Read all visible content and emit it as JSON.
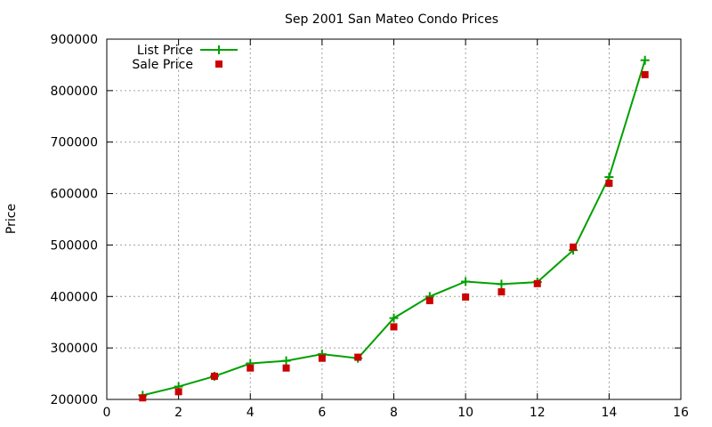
{
  "chart_data": {
    "type": "line",
    "title": "Sep 2001 San Mateo Condo Prices",
    "xlabel": "",
    "ylabel": "Price",
    "xlim": [
      0,
      16
    ],
    "ylim": [
      200000,
      900000
    ],
    "x_ticks": [
      0,
      2,
      4,
      6,
      8,
      10,
      12,
      14,
      16
    ],
    "y_ticks": [
      200000,
      300000,
      400000,
      500000,
      600000,
      700000,
      800000,
      900000
    ],
    "grid": true,
    "legend_position": "top-left",
    "series": [
      {
        "name": "List Price",
        "style": "line with plus markers",
        "color": "#00a000",
        "x": [
          1,
          2,
          3,
          4,
          5,
          6,
          7,
          8,
          9,
          10,
          11,
          12,
          13,
          14,
          15
        ],
        "y": [
          208000,
          225000,
          245000,
          270000,
          275000,
          288000,
          280000,
          358000,
          400000,
          429000,
          424000,
          428000,
          490000,
          632000,
          859000
        ]
      },
      {
        "name": "Sale Price",
        "style": "square markers",
        "color": "#cc0000",
        "x": [
          1,
          2,
          3,
          4,
          5,
          6,
          7,
          8,
          9,
          10,
          11,
          12,
          13,
          14,
          15
        ],
        "y": [
          203000,
          215000,
          245000,
          261000,
          261000,
          280000,
          282000,
          341000,
          392000,
          399000,
          409000,
          425000,
          496000,
          620000,
          831000
        ]
      }
    ]
  }
}
